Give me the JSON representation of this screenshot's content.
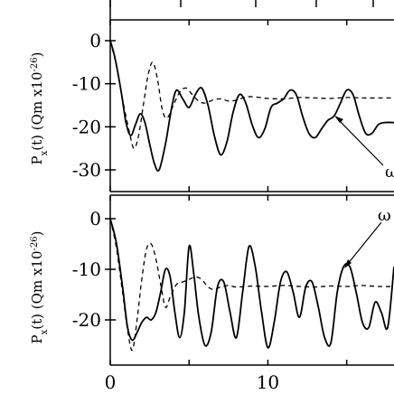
{
  "figure": {
    "ylabel_main": "P",
    "ylabel_sub": "x",
    "ylabel_rest": "(t) (Qm x10",
    "ylabel_exp": "-26",
    "ylabel_close": ")"
  },
  "chart_data": [
    {
      "type": "line",
      "panel": "top",
      "ylabel": "Px(t) (Qm x10^-26)",
      "xlim": [
        0,
        18
      ],
      "ylim": [
        -33,
        2
      ],
      "yticks": [
        0,
        -10,
        -20,
        -30
      ],
      "ytick_labels": [
        "0",
        "-10",
        "-20",
        "-30"
      ],
      "annotation": "ω",
      "series": [
        {
          "style": "solid",
          "x": [
            0,
            0.3,
            0.7,
            1.0,
            1.3,
            1.6,
            1.9,
            2.2,
            2.5,
            2.8,
            3.1,
            3.5,
            3.9,
            4.2,
            4.6,
            5.0,
            5.4,
            5.8,
            6.2,
            6.6,
            7.0,
            7.4,
            7.8,
            8.2,
            8.6,
            9.0,
            9.4,
            9.8,
            10.2,
            10.6,
            11.0,
            11.4,
            11.8,
            12.2,
            12.6,
            13.0,
            13.4,
            13.8,
            14.2,
            14.6,
            15.0,
            15.4,
            15.8,
            16.2,
            16.6,
            17.0,
            17.4,
            18.0
          ],
          "y": [
            0,
            -4,
            -12,
            -19,
            -22,
            -19.5,
            -17,
            -19,
            -24,
            -28.5,
            -30,
            -24,
            -15.5,
            -11.5,
            -13.5,
            -15.5,
            -12.5,
            -11,
            -15,
            -22,
            -26.5,
            -23.5,
            -16.5,
            -12.5,
            -14.5,
            -19.5,
            -22.5,
            -20.5,
            -15.5,
            -14.5,
            -13.5,
            -11.5,
            -12.5,
            -17.5,
            -21.5,
            -22.5,
            -20.5,
            -18.5,
            -17.5,
            -14.5,
            -11.5,
            -12.5,
            -17.5,
            -21.5,
            -21.5,
            -19.5,
            -19,
            -19
          ]
        },
        {
          "style": "dashed",
          "x": [
            0,
            0.4,
            0.8,
            1.2,
            1.5,
            1.8,
            2.1,
            2.4,
            2.7,
            3.0,
            3.3,
            3.6,
            4.0,
            4.4,
            4.8,
            5.2,
            5.6,
            6.0,
            6.5,
            7.0,
            7.5,
            8.0,
            8.5,
            9.0,
            10.0,
            11.0,
            12.0,
            13.0,
            14.0,
            15.0,
            16.0,
            17.0,
            18.0
          ],
          "y": [
            0,
            -6,
            -14,
            -21,
            -25,
            -22,
            -15,
            -8,
            -5,
            -9,
            -16,
            -18,
            -15,
            -12,
            -11,
            -12.5,
            -14,
            -14.5,
            -13.8,
            -13.5,
            -14,
            -13.8,
            -13.2,
            -13,
            -13.4,
            -13.5,
            -13.2,
            -13.3,
            -13.4,
            -13.2,
            -13.3,
            -13.3,
            -13.3
          ]
        }
      ]
    },
    {
      "type": "line",
      "panel": "bottom",
      "ylabel": "Px(t) (Qm x10^-26)",
      "xlim": [
        0,
        18
      ],
      "ylim": [
        -28,
        2
      ],
      "yticks": [
        0,
        -10,
        -20
      ],
      "ytick_labels": [
        "0",
        "-10",
        "-20"
      ],
      "xticks": [
        0,
        10
      ],
      "xtick_labels": [
        "0",
        "10"
      ],
      "annotation": "ω",
      "series": [
        {
          "style": "solid",
          "x": [
            0,
            0.4,
            0.8,
            1.1,
            1.4,
            1.7,
            2.0,
            2.3,
            2.6,
            2.9,
            3.2,
            3.5,
            3.8,
            4.1,
            4.4,
            4.7,
            5.0,
            5.3,
            5.6,
            6.0,
            6.4,
            6.8,
            7.2,
            7.6,
            8.0,
            8.4,
            8.8,
            9.2,
            9.6,
            10.0,
            10.4,
            10.8,
            11.2,
            11.6,
            12.0,
            12.4,
            12.8,
            13.2,
            13.6,
            14.0,
            14.4,
            14.8,
            15.2,
            15.6,
            16.0,
            16.4,
            16.8,
            17.2,
            17.6,
            18.0
          ],
          "y": [
            0,
            -5,
            -14,
            -21.5,
            -24,
            -22.5,
            -20.5,
            -19.5,
            -20,
            -18.5,
            -14.5,
            -10,
            -11.5,
            -18.5,
            -23.5,
            -18.5,
            -5.5,
            -11,
            -19,
            -25,
            -22.5,
            -13.5,
            -12.5,
            -18.5,
            -23.5,
            -14.5,
            -5.5,
            -9.5,
            -18.5,
            -25.5,
            -20.5,
            -12.5,
            -10.5,
            -14.5,
            -19.5,
            -13.5,
            -12.5,
            -17.5,
            -23.5,
            -24.5,
            -14.5,
            -9.5,
            -9.5,
            -14.5,
            -20.5,
            -21.5,
            -16.5,
            -18.5,
            -21.5,
            -9.5
          ]
        },
        {
          "style": "dashed",
          "x": [
            0,
            0.4,
            0.8,
            1.1,
            1.4,
            1.7,
            2.0,
            2.3,
            2.6,
            2.9,
            3.2,
            3.5,
            3.8,
            4.2,
            4.6,
            5.0,
            5.4,
            5.8,
            6.2,
            6.6,
            7.0,
            7.5,
            8.0,
            9.0,
            10.0,
            11.0,
            12.0,
            13.0,
            14.0,
            15.0,
            16.0,
            17.0,
            18.0
          ],
          "y": [
            0,
            -6,
            -15,
            -22,
            -26,
            -20,
            -12,
            -6,
            -5,
            -8,
            -13,
            -17.5,
            -15.5,
            -13,
            -12.5,
            -12,
            -11.5,
            -12,
            -13.5,
            -14,
            -13.5,
            -13.2,
            -13.5,
            -13.3,
            -13.4,
            -13.2,
            -13.4,
            -13.5,
            -13.3,
            -13.4,
            -13.2,
            -13.4,
            -13.4
          ]
        }
      ]
    }
  ]
}
